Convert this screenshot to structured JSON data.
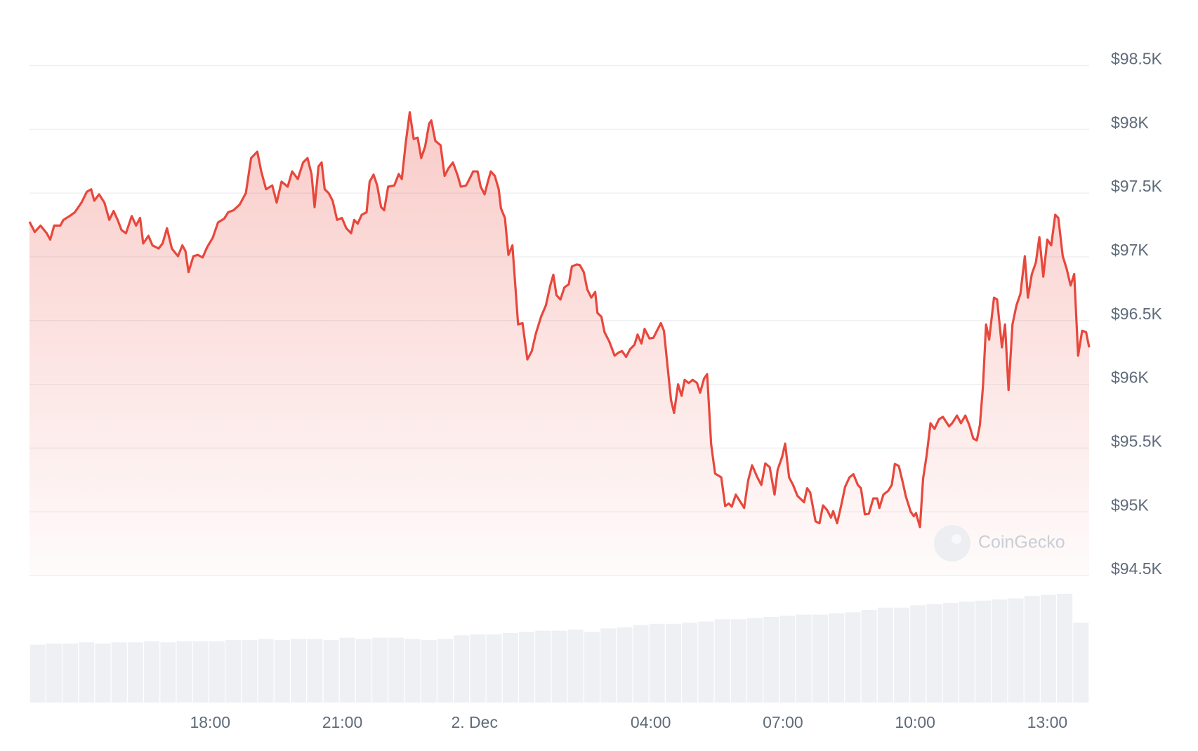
{
  "chart_data": {
    "type": "line",
    "watermark": "CoinGecko",
    "x": [
      13.9,
      14.02,
      14.15,
      14.29,
      14.37,
      14.46,
      14.6,
      14.67,
      14.81,
      14.93,
      15.08,
      15.2,
      15.3,
      15.37,
      15.48,
      15.6,
      15.71,
      15.81,
      15.9,
      15.99,
      16.09,
      16.22,
      16.32,
      16.41,
      16.48,
      16.6,
      16.69,
      16.83,
      16.92,
      17.02,
      17.13,
      17.27,
      17.37,
      17.44,
      17.51,
      17.62,
      17.72,
      17.83,
      17.93,
      18.06,
      18.18,
      18.32,
      18.41,
      18.53,
      18.67,
      18.81,
      18.93,
      19.07,
      19.16,
      19.27,
      19.41,
      19.51,
      19.62,
      19.76,
      19.86,
      19.99,
      20.11,
      20.21,
      20.3,
      20.37,
      20.46,
      20.53,
      20.6,
      20.69,
      20.78,
      20.88,
      20.99,
      21.09,
      21.2,
      21.27,
      21.35,
      21.44,
      21.55,
      21.62,
      21.71,
      21.79,
      21.88,
      21.95,
      22.04,
      22.18,
      22.28,
      22.35,
      22.44,
      22.53,
      22.62,
      22.71,
      22.79,
      22.88,
      22.97,
      23.02,
      23.11,
      23.23,
      23.32,
      23.41,
      23.51,
      23.62,
      23.69,
      23.81,
      23.9,
      23.97,
      24.07,
      24.14,
      24.23,
      24.3,
      24.37,
      24.46,
      24.55,
      24.6,
      24.69,
      24.77,
      24.86,
      24.99,
      25.09,
      25.2,
      25.3,
      25.39,
      25.51,
      25.62,
      25.72,
      25.79,
      25.86,
      25.95,
      26.04,
      26.14,
      26.21,
      26.32,
      26.39,
      26.48,
      26.56,
      26.65,
      26.74,
      26.79,
      26.88,
      26.95,
      27.06,
      27.18,
      27.27,
      27.35,
      27.44,
      27.53,
      27.63,
      27.7,
      27.79,
      27.86,
      27.97,
      28.06,
      28.14,
      28.23,
      28.3,
      28.37,
      28.46,
      28.53,
      28.62,
      28.7,
      28.77,
      28.86,
      28.95,
      29.05,
      29.12,
      29.21,
      29.28,
      29.37,
      29.46,
      29.6,
      29.69,
      29.77,
      29.84,
      29.93,
      30.04,
      30.12,
      30.21,
      30.3,
      30.42,
      30.51,
      30.6,
      30.7,
      30.81,
      30.88,
      30.98,
      31.05,
      31.14,
      31.23,
      31.33,
      31.48,
      31.55,
      31.62,
      31.74,
      31.83,
      31.91,
      32.0,
      32.09,
      32.14,
      32.23,
      32.32,
      32.41,
      32.51,
      32.6,
      32.7,
      32.77,
      32.86,
      32.95,
      33.05,
      33.14,
      33.19,
      33.28,
      33.39,
      33.47,
      33.54,
      33.63,
      33.72,
      33.79,
      33.9,
      33.97,
      34.02,
      34.11,
      34.18,
      34.26,
      34.35,
      34.44,
      34.54,
      34.63,
      34.77,
      34.84,
      34.95,
      35.04,
      35.14,
      35.23,
      35.32,
      35.4,
      35.47,
      35.54,
      35.61,
      35.68,
      35.79,
      35.86,
      35.97,
      36.04,
      36.12,
      36.21,
      36.3,
      36.39,
      36.49,
      36.56,
      36.65,
      36.74,
      36.82,
      36.91,
      37.0,
      37.09,
      37.18,
      37.25,
      37.35,
      37.44,
      37.53,
      37.61,
      37.7,
      37.79,
      37.88,
      37.95
    ],
    "series": [
      {
        "color": "#e8473c",
        "values": [
          97275,
          97195,
          97245,
          97185,
          97135,
          97245,
          97245,
          97290,
          97320,
          97350,
          97425,
          97510,
          97530,
          97440,
          97490,
          97425,
          97290,
          97360,
          97290,
          97210,
          97185,
          97320,
          97245,
          97305,
          97105,
          97165,
          97090,
          97065,
          97105,
          97225,
          97065,
          97005,
          97090,
          97045,
          96880,
          97005,
          97015,
          96995,
          97075,
          97150,
          97270,
          97300,
          97350,
          97365,
          97410,
          97500,
          97775,
          97825,
          97670,
          97530,
          97560,
          97425,
          97590,
          97550,
          97670,
          97610,
          97740,
          97775,
          97650,
          97390,
          97710,
          97740,
          97530,
          97500,
          97440,
          97290,
          97305,
          97225,
          97185,
          97290,
          97260,
          97330,
          97350,
          97590,
          97645,
          97560,
          97390,
          97365,
          97550,
          97560,
          97650,
          97610,
          97895,
          98135,
          97925,
          97935,
          97775,
          97865,
          98045,
          98070,
          97910,
          97875,
          97635,
          97695,
          97740,
          97635,
          97550,
          97560,
          97620,
          97670,
          97670,
          97550,
          97490,
          97585,
          97670,
          97635,
          97530,
          97380,
          97305,
          97015,
          97090,
          96470,
          96480,
          96195,
          96260,
          96395,
          96530,
          96620,
          96775,
          96860,
          96700,
          96665,
          96760,
          96785,
          96925,
          96940,
          96935,
          96880,
          96745,
          96680,
          96725,
          96560,
          96530,
          96410,
          96335,
          96225,
          96250,
          96260,
          96215,
          96275,
          96310,
          96390,
          96320,
          96435,
          96360,
          96365,
          96420,
          96480,
          96420,
          96180,
          95875,
          95775,
          96000,
          95910,
          96035,
          96010,
          96035,
          96010,
          95935,
          96045,
          96080,
          95530,
          95300,
          95270,
          95045,
          95065,
          95040,
          95135,
          95075,
          95030,
          95245,
          95365,
          95270,
          95210,
          95380,
          95350,
          95135,
          95330,
          95430,
          95535,
          95270,
          95210,
          95125,
          95075,
          95185,
          95150,
          94925,
          94910,
          95050,
          95015,
          94955,
          95005,
          94910,
          95045,
          95195,
          95270,
          95295,
          95210,
          95185,
          94980,
          94985,
          95105,
          95105,
          95030,
          95135,
          95165,
          95210,
          95375,
          95360,
          95230,
          95120,
          95000,
          94965,
          94990,
          94880,
          95260,
          95440,
          95695,
          95650,
          95725,
          95745,
          95670,
          95695,
          95755,
          95695,
          95755,
          95680,
          95575,
          95560,
          95680,
          95985,
          96470,
          96350,
          96680,
          96665,
          96290,
          96470,
          95955,
          96470,
          96620,
          96710,
          97005,
          96680,
          96865,
          96955,
          97155,
          96845,
          97135,
          97090,
          97330,
          97305,
          97005,
          96905,
          96775,
          96865,
          96225,
          96420,
          96410,
          96290
        ]
      }
    ],
    "volume": {
      "color": "#eef0f4",
      "ylim": [
        0,
        100
      ],
      "values": [
        50,
        51,
        51,
        52,
        51,
        52,
        52,
        53,
        52,
        53,
        53,
        53,
        54,
        54,
        55,
        54,
        55,
        55,
        54,
        56,
        55,
        56,
        56,
        55,
        54,
        55,
        58,
        59,
        59,
        60,
        61,
        62,
        62,
        63,
        61,
        64,
        65,
        67,
        68,
        68,
        69,
        70,
        72,
        72,
        73,
        74,
        75,
        76,
        76,
        77,
        78,
        80,
        82,
        82,
        84,
        85,
        86,
        87,
        88,
        89,
        90,
        92,
        93,
        94,
        69
      ]
    },
    "xlim": [
      13.9,
      37.95
    ],
    "xticks": [
      {
        "value": 18,
        "label": "18:00"
      },
      {
        "value": 21,
        "label": "21:00"
      },
      {
        "value": 24,
        "label": "2. Dec"
      },
      {
        "value": 28,
        "label": "04:00"
      },
      {
        "value": 31,
        "label": "07:00"
      },
      {
        "value": 34,
        "label": "10:00"
      },
      {
        "value": 37,
        "label": "13:00"
      }
    ],
    "ylim": [
      94500,
      98500
    ],
    "yticks": [
      {
        "value": 94500,
        "label": "$94.5K"
      },
      {
        "value": 95000,
        "label": "$95K"
      },
      {
        "value": 95500,
        "label": "$95.5K"
      },
      {
        "value": 96000,
        "label": "$96K"
      },
      {
        "value": 96500,
        "label": "$96.5K"
      },
      {
        "value": 97000,
        "label": "$97K"
      },
      {
        "value": 97500,
        "label": "$97.5K"
      },
      {
        "value": 98000,
        "label": "$98K"
      },
      {
        "value": 98500,
        "label": "$98.5K"
      }
    ],
    "grid": true
  }
}
